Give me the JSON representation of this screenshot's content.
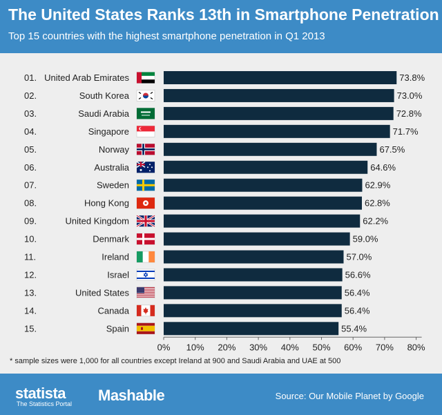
{
  "header": {
    "title": "The United States Ranks 13th in Smartphone Penetration",
    "subtitle": "Top 15 countries with the highest smartphone penetration in Q1 2013"
  },
  "footnote": "* sample sizes were 1,000 for all countries except Ireland at 900 and Saudi Arabia and UAE at 500",
  "footer": {
    "brand": "statista",
    "brand_tagline": "The Statistics Portal",
    "partner": "Mashable",
    "source": "Source: Our Mobile Planet by Google"
  },
  "colors": {
    "header_bg": "#3d8bc6",
    "bar": "#0f2b3f",
    "plot_bg": "#eeeeee"
  },
  "chart_data": {
    "type": "bar",
    "orientation": "horizontal",
    "title": "The United States Ranks 13th in Smartphone Penetration",
    "subtitle": "Top 15 countries with the highest smartphone penetration in Q1 2013",
    "ranks": [
      "01.",
      "02.",
      "03.",
      "04.",
      "05.",
      "06.",
      "07.",
      "08.",
      "09.",
      "10.",
      "11.",
      "12.",
      "13.",
      "14.",
      "15."
    ],
    "categories": [
      "United Arab Emirates",
      "South Korea",
      "Saudi Arabia",
      "Singapore",
      "Norway",
      "Australia",
      "Sweden",
      "Hong Kong",
      "United Kingdom",
      "Denmark",
      "Ireland",
      "Israel",
      "United States",
      "Canada",
      "Spain"
    ],
    "flags": [
      "uae-flag-icon",
      "south-korea-flag-icon",
      "saudi-arabia-flag-icon",
      "singapore-flag-icon",
      "norway-flag-icon",
      "australia-flag-icon",
      "sweden-flag-icon",
      "hong-kong-flag-icon",
      "uk-flag-icon",
      "denmark-flag-icon",
      "ireland-flag-icon",
      "israel-flag-icon",
      "usa-flag-icon",
      "canada-flag-icon",
      "spain-flag-icon"
    ],
    "values": [
      73.8,
      73.0,
      72.8,
      71.7,
      67.5,
      64.6,
      62.9,
      62.8,
      62.2,
      59.0,
      57.0,
      56.6,
      56.4,
      56.4,
      55.4
    ],
    "value_labels": [
      "73.8%",
      "73.0%",
      "72.8%",
      "71.7%",
      "67.5%",
      "64.6%",
      "62.9%",
      "62.8%",
      "62.2%",
      "59.0%",
      "57.0%",
      "56.6%",
      "56.4%",
      "56.4%",
      "55.4%"
    ],
    "x_ticks": [
      0,
      10,
      20,
      30,
      40,
      50,
      60,
      70,
      80
    ],
    "x_tick_labels": [
      "0%",
      "10%",
      "20%",
      "30%",
      "40%",
      "50%",
      "60%",
      "70%",
      "80%"
    ],
    "xlim": [
      0,
      80
    ],
    "grid": false,
    "legend": "none"
  }
}
